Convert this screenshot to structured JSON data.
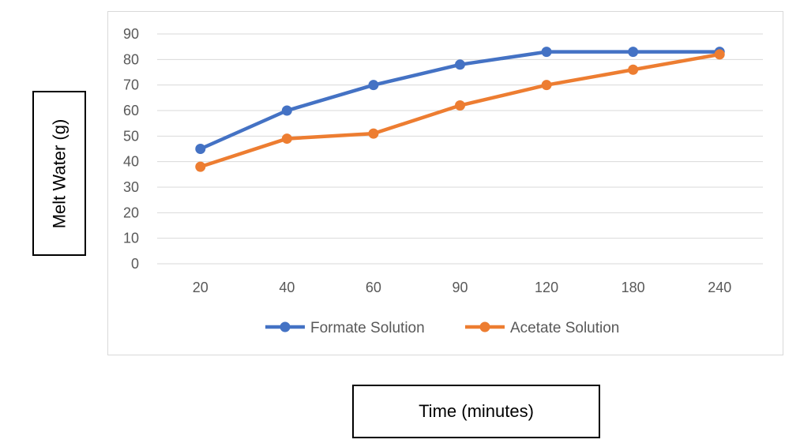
{
  "chart_data": {
    "type": "line",
    "categories": [
      "20",
      "40",
      "60",
      "90",
      "120",
      "180",
      "240"
    ],
    "series": [
      {
        "name": "Formate Solution",
        "values": [
          45,
          60,
          70,
          78,
          83,
          83,
          83
        ],
        "color": "#4472c4"
      },
      {
        "name": "Acetate Solution",
        "values": [
          38,
          49,
          51,
          62,
          70,
          76,
          82
        ],
        "color": "#ed7d31"
      }
    ],
    "xlabel": "Time (minutes)",
    "ylabel": "Melt Water (g)",
    "ylim": [
      0,
      90
    ],
    "yticks": [
      0,
      10,
      20,
      30,
      40,
      50,
      60,
      70,
      80,
      90
    ],
    "grid": true,
    "legend_position": "bottom",
    "grid_color": "#d9d9d9"
  }
}
